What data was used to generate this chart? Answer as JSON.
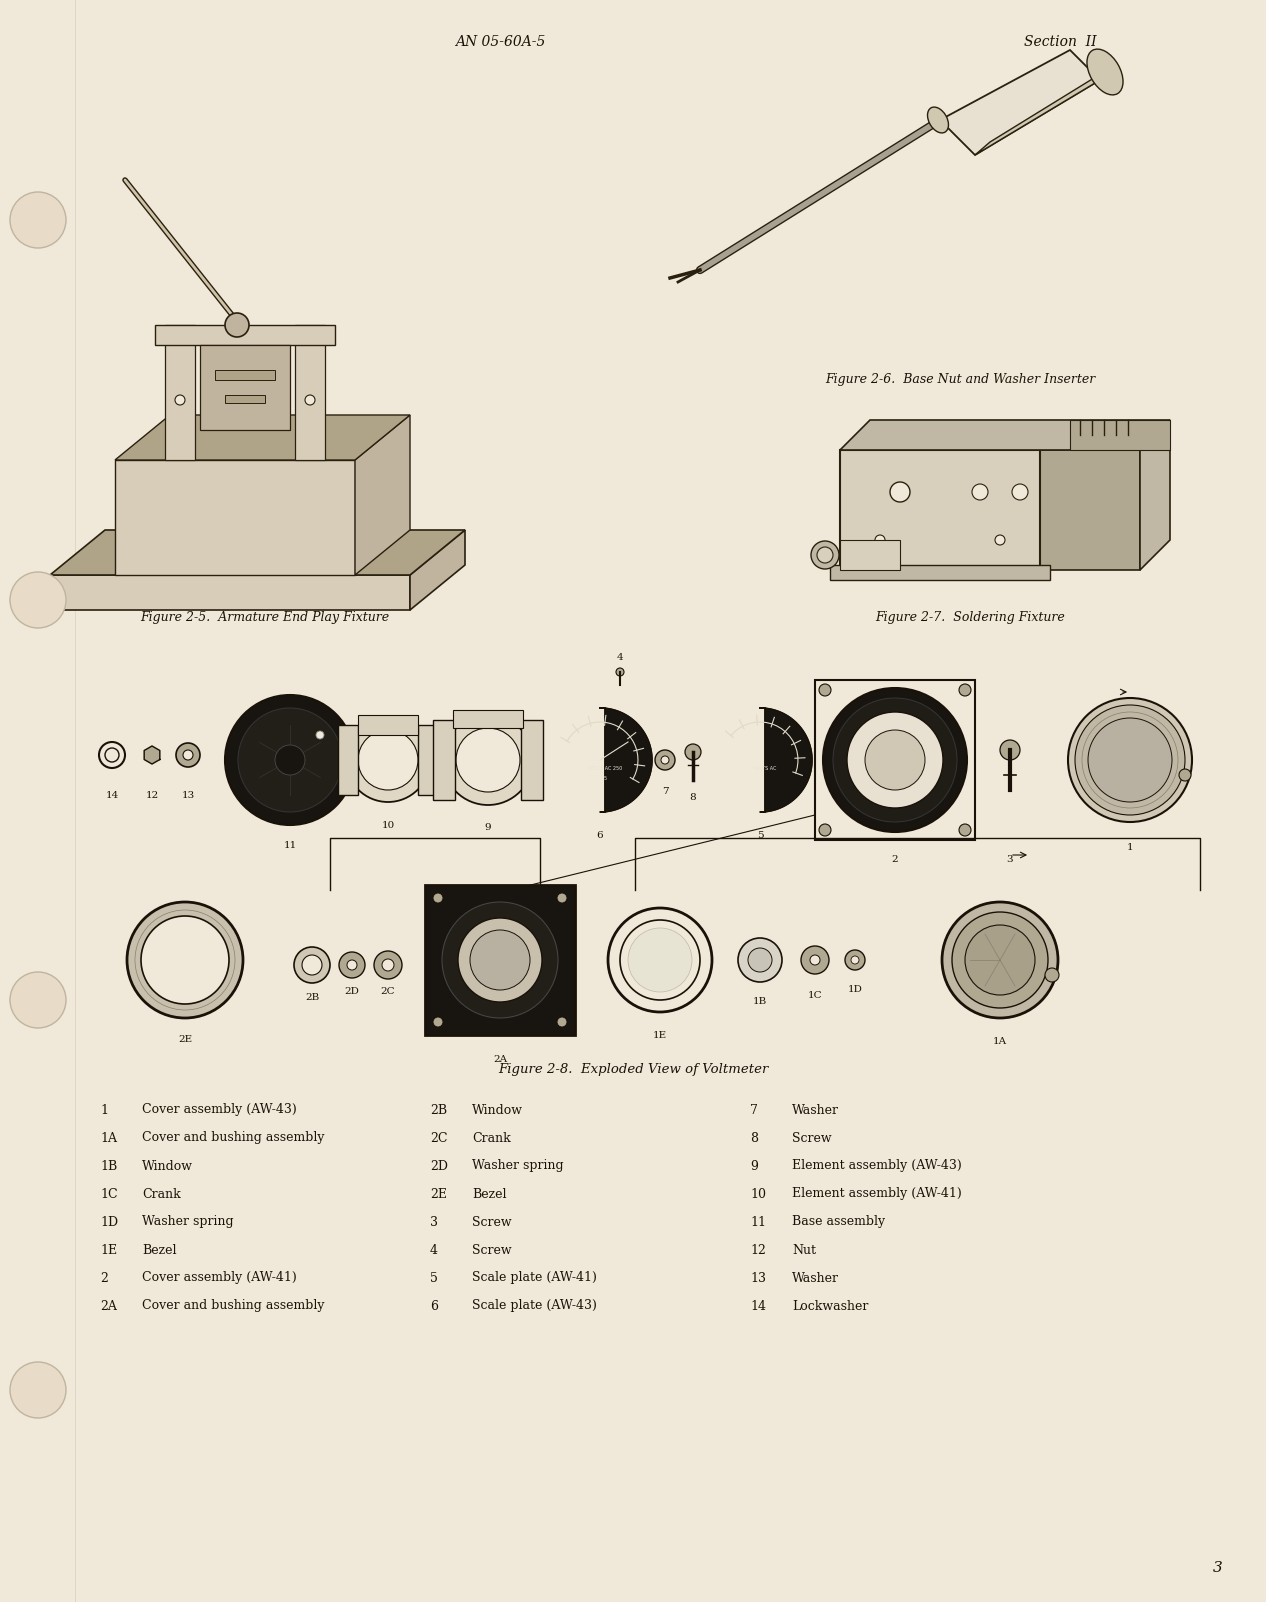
{
  "page_color": "#f0e8d8",
  "text_color": "#1a1208",
  "header_left": "AN 05-60A-5",
  "header_right": "Section  II",
  "footer_page": "3",
  "fig25_caption": "Figure 2-5.  Armature End Play Fixture",
  "fig26_caption": "Figure 2-6.  Base Nut and Washer Inserter",
  "fig27_caption": "Figure 2-7.  Soldering Fixture",
  "fig28_caption": "Figure 2-8.  Exploded View of Voltmeter",
  "legend_col1": [
    [
      "1",
      "Cover assembly (AW-43)"
    ],
    [
      "1A",
      "Cover and bushing assembly"
    ],
    [
      "1B",
      "Window"
    ],
    [
      "1C",
      "Crank"
    ],
    [
      "1D",
      "Washer spring"
    ],
    [
      "1E",
      "Bezel"
    ],
    [
      "2",
      "Cover assembly (AW-41)"
    ],
    [
      "2A",
      "Cover and bushing assembly"
    ]
  ],
  "legend_col2": [
    [
      "2B",
      "Window"
    ],
    [
      "2C",
      "Crank"
    ],
    [
      "2D",
      "Washer spring"
    ],
    [
      "2E",
      "Bezel"
    ],
    [
      "3",
      "Screw"
    ],
    [
      "4",
      "Screw"
    ],
    [
      "5",
      "Scale plate (AW-41)"
    ],
    [
      "6",
      "Scale plate (AW-43)"
    ]
  ],
  "legend_col3": [
    [
      "7",
      "Washer"
    ],
    [
      "8",
      "Screw"
    ],
    [
      "9",
      "Element assembly (AW-43)"
    ],
    [
      "10",
      "Element assembly (AW-41)"
    ],
    [
      "11",
      "Base assembly"
    ],
    [
      "12",
      "Nut"
    ],
    [
      "13",
      "Washer"
    ],
    [
      "14",
      "Lockwasher"
    ]
  ]
}
